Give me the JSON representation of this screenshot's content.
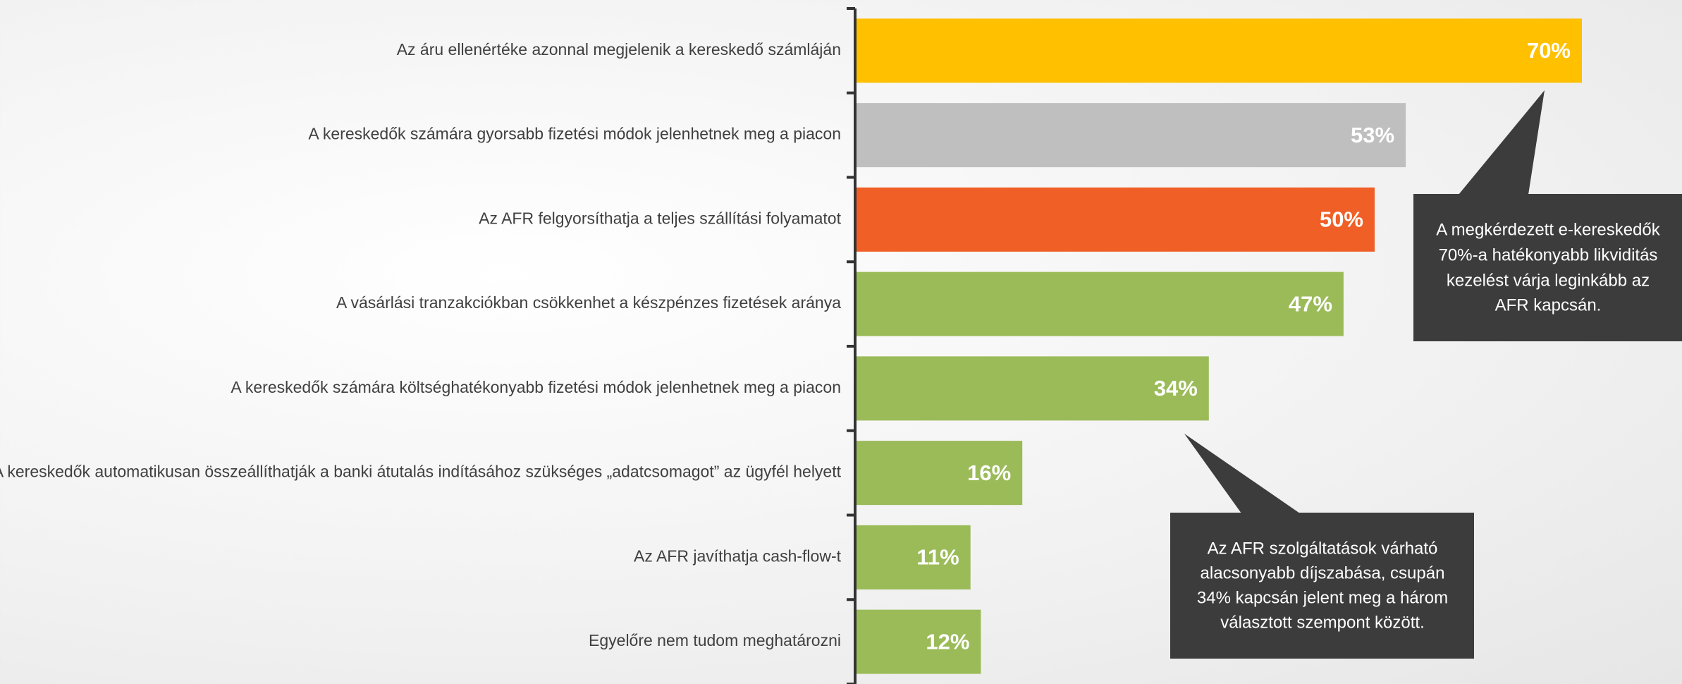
{
  "chart_data": {
    "type": "hbar",
    "categories": [
      "Az áru ellenértéke azonnal megjelenik a kereskedő számláján",
      "A kereskedők számára gyorsabb fizetési módok jelenhetnek meg a piacon",
      "Az AFR felgyorsíthatja a teljes szállítási folyamatot",
      "A vásárlási tranzakciókban csökkenhet a készpénzes fizetések aránya",
      "A kereskedők számára költséghatékonyabb fizetési módok jelenhetnek meg a piacon",
      "A kereskedők automatikusan összeállíthatják a banki átutalás indításához szükséges „adatcsomagot” az ügyfél helyett",
      "Az AFR javíthatja cash-flow-t",
      "Egyelőre nem tudom meghatározni"
    ],
    "values": [
      70,
      53,
      50,
      47,
      34,
      16,
      11,
      12
    ],
    "value_labels": [
      "70%",
      "53%",
      "50%",
      "47%",
      "34%",
      "16%",
      "11%",
      "12%"
    ],
    "colors": [
      "#ffc000",
      "#bfbfbf",
      "#ef5f26",
      "#9bbb59",
      "#9bbb59",
      "#9bbb59",
      "#9bbb59",
      "#9bbb59"
    ],
    "annotations": [
      {
        "lines": [
          "A megkérdezett  e-kereskedők",
          "70%-a hatékonyabb likviditás",
          "kezelést várja leginkább az",
          "AFR kapcsán."
        ]
      },
      {
        "lines": [
          "Az AFR szolgáltatások várható",
          "alacsonyabb díjszabása, csupán",
          "34% kapcsán jelent meg a három",
          "választott szempont között."
        ]
      }
    ]
  }
}
